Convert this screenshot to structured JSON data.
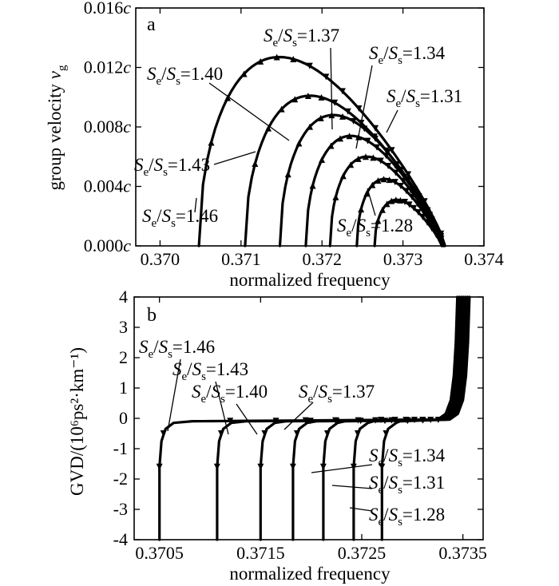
{
  "chart_data": [
    {
      "type": "line",
      "panel": "a",
      "xlabel": "normalized frequency",
      "ylabel_main": "group velocity ",
      "ylabel_var": "v",
      "ylabel_sub": "g",
      "xlim": [
        0.3697,
        0.374
      ],
      "ylim": [
        0,
        0.016
      ],
      "xticks": [
        "0.370",
        "0.371",
        "0.372",
        "0.373",
        "0.374"
      ],
      "yticks": [
        "0.000c",
        "0.004c",
        "0.008c",
        "0.012c",
        "0.016c"
      ],
      "series": [
        {
          "name": "Se/Ss=1.46",
          "ratio": "1.46",
          "x_start": 0.37048,
          "x_end": 0.37352,
          "peak": 0.0127
        },
        {
          "name": "Se/Ss=1.43",
          "ratio": "1.43",
          "x_start": 0.37105,
          "x_end": 0.37351,
          "peak": 0.0101
        },
        {
          "name": "Se/Ss=1.40",
          "ratio": "1.40",
          "x_start": 0.37148,
          "x_end": 0.3735,
          "peak": 0.0088
        },
        {
          "name": "Se/Ss=1.37",
          "ratio": "1.37",
          "x_start": 0.3718,
          "x_end": 0.3735,
          "peak": 0.0074
        },
        {
          "name": "Se/Ss=1.34",
          "ratio": "1.34",
          "x_start": 0.3721,
          "x_end": 0.37349,
          "peak": 0.006
        },
        {
          "name": "Se/Ss=1.31",
          "ratio": "1.31",
          "x_start": 0.37243,
          "x_end": 0.37348,
          "peak": 0.0045
        },
        {
          "name": "Se/Ss=1.28",
          "ratio": "1.28",
          "x_start": 0.37265,
          "x_end": 0.37348,
          "peak": 0.0031
        }
      ],
      "annotations": [
        {
          "ratio": "1.37"
        },
        {
          "ratio": "1.34"
        },
        {
          "ratio": "1.40"
        },
        {
          "ratio": "1.31"
        },
        {
          "ratio": "1.43"
        },
        {
          "ratio": "1.46"
        },
        {
          "ratio": "1.28"
        }
      ]
    },
    {
      "type": "line",
      "panel": "b",
      "xlabel": "normalized frequency",
      "ylabel": "GVD/(10⁶ps²·km⁻¹)",
      "xlim": [
        0.37025,
        0.3737
      ],
      "ylim": [
        -4,
        4
      ],
      "xticks": [
        "0.3705",
        "0.3715",
        "0.3725",
        "0.3735"
      ],
      "yticks": [
        "-4",
        "-3",
        "-2",
        "-1",
        "0",
        "1",
        "2",
        "3",
        "4"
      ],
      "series": [
        {
          "name": "Se/Ss=1.46",
          "ratio": "1.46",
          "x_start": 0.3705,
          "x_asym": 0.37345
        },
        {
          "name": "Se/Ss=1.43",
          "ratio": "1.43",
          "x_start": 0.37107,
          "x_asym": 0.37347
        },
        {
          "name": "Se/Ss=1.40",
          "ratio": "1.40",
          "x_start": 0.3715,
          "x_asym": 0.37349
        },
        {
          "name": "Se/Ss=1.37",
          "ratio": "1.37",
          "x_start": 0.37182,
          "x_asym": 0.37351
        },
        {
          "name": "Se/Ss=1.34",
          "ratio": "1.34",
          "x_start": 0.37212,
          "x_asym": 0.37353
        },
        {
          "name": "Se/Ss=1.31",
          "ratio": "1.31",
          "x_start": 0.37242,
          "x_asym": 0.37355
        },
        {
          "name": "Se/Ss=1.28",
          "ratio": "1.28",
          "x_start": 0.3727,
          "x_asym": 0.37357
        }
      ],
      "annotations": [
        {
          "ratio": "1.46"
        },
        {
          "ratio": "1.43"
        },
        {
          "ratio": "1.40"
        },
        {
          "ratio": "1.37"
        },
        {
          "ratio": "1.34"
        },
        {
          "ratio": "1.31"
        },
        {
          "ratio": "1.28"
        }
      ]
    }
  ]
}
